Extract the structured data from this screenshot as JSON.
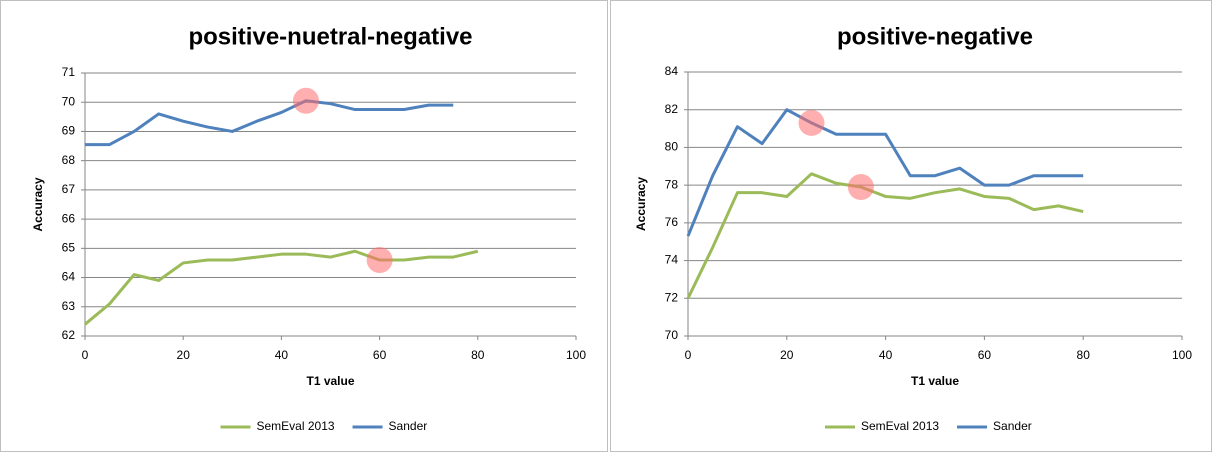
{
  "chart_data": [
    {
      "type": "line",
      "title": "positive-nuetral-negative",
      "xlabel": "T1 value",
      "ylabel": "Accuracy",
      "x": [
        0,
        5,
        10,
        15,
        20,
        25,
        30,
        35,
        40,
        45,
        50,
        55,
        60,
        65,
        70,
        75,
        80
      ],
      "series": [
        {
          "name": "SemEval 2013",
          "color": "#9bbb59",
          "values": [
            62.4,
            63.1,
            64.1,
            63.9,
            64.5,
            64.6,
            64.6,
            64.7,
            64.8,
            64.8,
            64.7,
            64.9,
            64.6,
            64.6,
            64.7,
            64.7,
            64.9
          ]
        },
        {
          "name": "Sander",
          "color": "#4f81bd",
          "values": [
            68.55,
            68.55,
            69.0,
            69.6,
            69.35,
            69.15,
            69.0,
            69.35,
            69.65,
            70.05,
            69.95,
            69.75,
            69.75,
            69.75,
            69.9,
            69.9,
            null
          ]
        }
      ],
      "highlights": [
        {
          "series": "Sander",
          "x": 45
        },
        {
          "series": "SemEval 2013",
          "x": 60
        }
      ],
      "xlim": [
        0,
        100
      ],
      "xticks": [
        0,
        20,
        40,
        60,
        80,
        100
      ],
      "ylim": [
        62,
        71
      ],
      "yticks": [
        62,
        63,
        64,
        65,
        66,
        67,
        68,
        69,
        70,
        71
      ],
      "grid": true,
      "legend": "bottom"
    },
    {
      "type": "line",
      "title": "positive-negative",
      "xlabel": "T1 value",
      "ylabel": "Accuracy",
      "x": [
        0,
        5,
        10,
        15,
        20,
        25,
        30,
        35,
        40,
        45,
        50,
        55,
        60,
        65,
        70,
        75,
        80
      ],
      "series": [
        {
          "name": "SemEval 2013",
          "color": "#9bbb59",
          "values": [
            72.0,
            74.7,
            77.6,
            77.6,
            77.4,
            78.6,
            78.1,
            77.9,
            77.4,
            77.3,
            77.6,
            77.8,
            77.4,
            77.3,
            76.7,
            76.9,
            76.6
          ]
        },
        {
          "name": "Sander",
          "color": "#4f81bd",
          "values": [
            75.3,
            78.5,
            81.1,
            80.2,
            82.0,
            81.3,
            80.7,
            80.7,
            80.7,
            78.5,
            78.5,
            78.9,
            78.0,
            78.0,
            78.5,
            78.5,
            78.5
          ]
        }
      ],
      "highlights": [
        {
          "series": "Sander",
          "x": 25
        },
        {
          "series": "SemEval 2013",
          "x": 35
        }
      ],
      "xlim": [
        0,
        100
      ],
      "xticks": [
        0,
        20,
        40,
        60,
        80,
        100
      ],
      "ylim": [
        70,
        84
      ],
      "yticks": [
        70,
        72,
        74,
        76,
        78,
        80,
        82,
        84
      ],
      "grid": true,
      "legend": "bottom"
    }
  ]
}
